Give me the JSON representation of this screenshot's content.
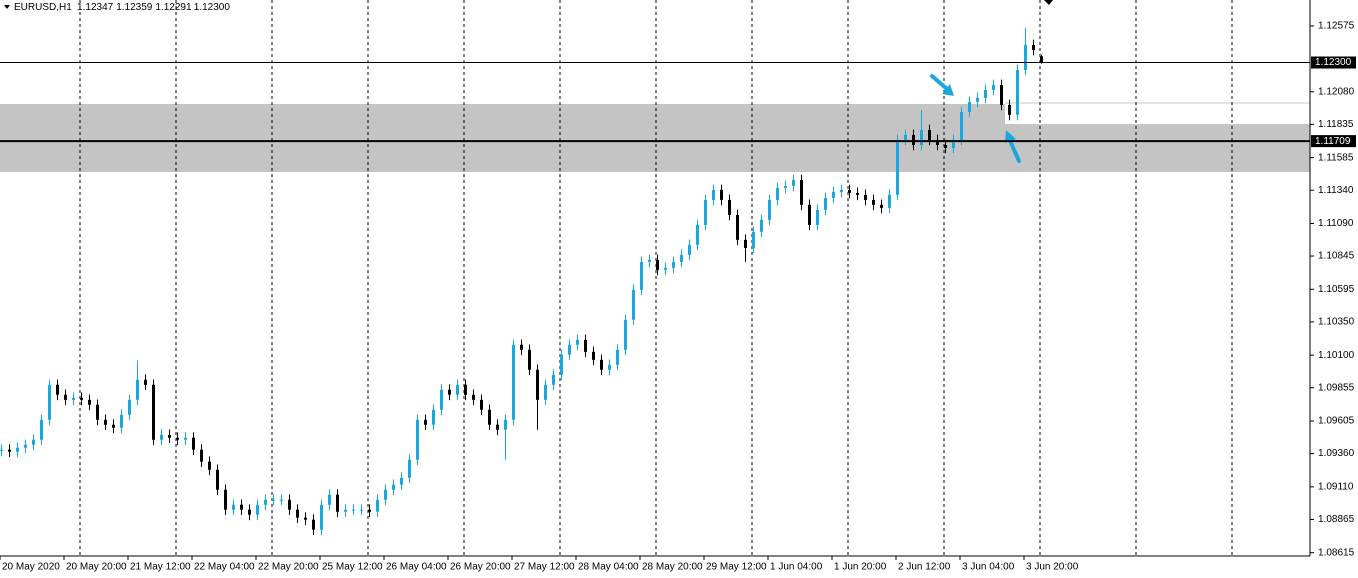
{
  "chart_data": {
    "type": "candlestick",
    "symbol": "EURUSD,H1",
    "quote": [
      {
        "value": 1.12347,
        "label": "1.12347"
      },
      {
        "value": 1.12359,
        "label": "1.12359"
      },
      {
        "value": 1.12291,
        "label": "1.12291"
      },
      {
        "value": 1.123,
        "label": "1.12300"
      }
    ],
    "up_color": "#1aa7df",
    "down_color": "#000000",
    "ylim": [
      1.0859,
      1.1277
    ],
    "yticks": [
      {
        "value": 1.12575,
        "label": "1.12575"
      },
      {
        "value": 1.1208,
        "label": "1.12080"
      },
      {
        "value": 1.11835,
        "label": "1.11835"
      },
      {
        "value": 1.11585,
        "label": "1.11585"
      },
      {
        "value": 1.1134,
        "label": "1.11340"
      },
      {
        "value": 1.1109,
        "label": "1.11090"
      },
      {
        "value": 1.10845,
        "label": "1.10845"
      },
      {
        "value": 1.10595,
        "label": "1.10595"
      },
      {
        "value": 1.1035,
        "label": "1.10350"
      },
      {
        "value": 1.101,
        "label": "1.10100"
      },
      {
        "value": 1.09855,
        "label": "1.09855"
      },
      {
        "value": 1.09605,
        "label": "1.09605"
      },
      {
        "value": 1.0936,
        "label": "1.09360"
      },
      {
        "value": 1.0911,
        "label": "1.09110"
      },
      {
        "value": 1.08865,
        "label": "1.08865"
      },
      {
        "value": 1.08615,
        "label": "1.08615"
      }
    ],
    "price_lines": [
      {
        "value": 1.123,
        "label": "1.12300"
      },
      {
        "value": 1.11709,
        "label": "1.11709"
      }
    ],
    "categories": [
      "20 May 2020",
      null,
      null,
      null,
      null,
      null,
      null,
      null,
      "20 May 20:00",
      null,
      null,
      null,
      null,
      null,
      null,
      null,
      "21 May 12:00",
      null,
      null,
      null,
      null,
      null,
      null,
      null,
      "22 May 04:00",
      null,
      null,
      null,
      null,
      null,
      null,
      null,
      "22 May 20:00",
      null,
      null,
      null,
      null,
      null,
      null,
      null,
      "25 May 12:00",
      null,
      null,
      null,
      null,
      null,
      null,
      null,
      "26 May 04:00",
      null,
      null,
      null,
      null,
      null,
      null,
      null,
      "26 May 20:00",
      null,
      null,
      null,
      null,
      null,
      null,
      null,
      "27 May 12:00",
      null,
      null,
      null,
      null,
      null,
      null,
      null,
      "28 May 04:00",
      null,
      null,
      null,
      null,
      null,
      null,
      null,
      "28 May 20:00",
      null,
      null,
      null,
      null,
      null,
      null,
      null,
      "29 May 12:00",
      null,
      null,
      null,
      null,
      null,
      null,
      null,
      "1 Jun 04:00",
      null,
      null,
      null,
      null,
      null,
      null,
      null,
      "1 Jun 20:00",
      null,
      null,
      null,
      null,
      null,
      null,
      null,
      "2 Jun 12:00",
      null,
      null,
      null,
      null,
      null,
      null,
      null,
      "3 Jun 04:00",
      null,
      null,
      null,
      null,
      null,
      null,
      null,
      "3 Jun 20:00",
      null,
      null
    ],
    "open": [
      1.0938,
      1.09389,
      1.09374,
      1.09404,
      1.09426,
      1.09464,
      1.09614,
      1.09877,
      1.09802,
      1.09764,
      1.09779,
      1.09764,
      1.09727,
      1.09614,
      1.09577,
      1.09554,
      1.09652,
      1.09764,
      1.09915,
      1.09877,
      1.09464,
      1.09501,
      1.09479,
      1.09464,
      1.09479,
      1.09389,
      1.09299,
      1.09238,
      1.09088,
      1.08938,
      1.08975,
      1.08938,
      1.089,
      1.08975,
      1.09013,
      1.09013,
      1.09013,
      1.08938,
      1.08878,
      1.08863,
      1.08788,
      1.08975,
      1.09051,
      1.08923,
      1.08938,
      1.08938,
      1.08938,
      1.08923,
      1.09013,
      1.09088,
      1.09126,
      1.09178,
      1.09314,
      1.09614,
      1.09577,
      1.09689,
      1.0984,
      1.09802,
      1.09877,
      1.09802,
      1.09764,
      1.09689,
      1.09577,
      1.09539,
      1.09614,
      1.10178,
      1.1014,
      1.0999,
      1.09764,
      1.09877,
      1.09952,
      1.10103,
      1.10178,
      1.10215,
      1.10125,
      1.10065,
      1.0999,
      1.10027,
      1.1014,
      1.10366,
      1.10591,
      1.10801,
      1.10816,
      1.10741,
      1.10756,
      1.10801,
      1.10854,
      1.10929,
      1.11079,
      1.11267,
      1.11342,
      1.11267,
      1.11154,
      1.10967,
      1.10906,
      1.11027,
      1.11117,
      1.11267,
      1.11357,
      1.11372,
      1.11417,
      1.1123,
      1.11079,
      1.11192,
      1.11282,
      1.11327,
      1.11342,
      1.1132,
      1.11305,
      1.11267,
      1.1123,
      1.11207,
      1.11305,
      1.11718,
      1.11756,
      1.1168,
      1.11793,
      1.11718,
      1.1168,
      1.11658,
      1.11718,
      1.11928,
      1.12004,
      1.12034,
      1.12094,
      1.12131,
      1.11981,
      1.11906,
      1.12244,
      1.12432,
      1.12347
    ],
    "high": [
      1.09429,
      1.09429,
      1.09444,
      1.09466,
      1.09504,
      1.09654,
      1.09917,
      1.09917,
      1.09842,
      1.09819,
      1.09819,
      1.09804,
      1.09767,
      1.09654,
      1.09617,
      1.09692,
      1.09804,
      1.1006,
      1.09955,
      1.09917,
      1.09541,
      1.09541,
      1.09519,
      1.09519,
      1.09519,
      1.09429,
      1.09339,
      1.09278,
      1.09128,
      1.09015,
      1.09015,
      1.08978,
      1.09015,
      1.09053,
      1.09053,
      1.09053,
      1.09053,
      1.08978,
      1.08918,
      1.08903,
      1.09015,
      1.09091,
      1.09091,
      1.08978,
      1.08978,
      1.08978,
      1.08978,
      1.09053,
      1.09128,
      1.09166,
      1.09218,
      1.09354,
      1.09654,
      1.09654,
      1.09729,
      1.0988,
      1.0988,
      1.09917,
      1.09917,
      1.09842,
      1.09804,
      1.09729,
      1.09617,
      1.09654,
      1.10218,
      1.10218,
      1.1018,
      1.1003,
      1.09917,
      1.09992,
      1.10143,
      1.10218,
      1.10255,
      1.10255,
      1.10165,
      1.10105,
      1.10067,
      1.1018,
      1.10406,
      1.10631,
      1.10841,
      1.10856,
      1.10856,
      1.10796,
      1.10841,
      1.10894,
      1.10969,
      1.11119,
      1.11307,
      1.11382,
      1.11382,
      1.11307,
      1.11194,
      1.11007,
      1.11067,
      1.11157,
      1.11307,
      1.11397,
      1.11412,
      1.11457,
      1.11457,
      1.1127,
      1.11232,
      1.11322,
      1.11367,
      1.11382,
      1.11382,
      1.1136,
      1.11345,
      1.11307,
      1.1127,
      1.11345,
      1.11758,
      1.11796,
      1.11796,
      1.11944,
      1.11833,
      1.11758,
      1.1172,
      1.11758,
      1.11968,
      1.12044,
      1.12074,
      1.12134,
      1.12171,
      1.12171,
      1.12021,
      1.12284,
      1.1256,
      1.12472,
      1.12359
    ],
    "low": [
      1.0934,
      1.09334,
      1.09334,
      1.09364,
      1.09386,
      1.09424,
      1.09574,
      1.09762,
      1.09724,
      1.09724,
      1.09724,
      1.09687,
      1.09574,
      1.09537,
      1.09514,
      1.09514,
      1.09612,
      1.09724,
      1.09837,
      1.09424,
      1.09424,
      1.09439,
      1.09424,
      1.09424,
      1.09349,
      1.09259,
      1.09198,
      1.09048,
      1.08898,
      1.08898,
      1.08898,
      1.0886,
      1.0886,
      1.08935,
      1.08973,
      1.08973,
      1.08898,
      1.08838,
      1.08823,
      1.08748,
      1.08748,
      1.08935,
      1.08883,
      1.08883,
      1.08898,
      1.08898,
      1.08883,
      1.08883,
      1.08973,
      1.09048,
      1.09086,
      1.09138,
      1.09274,
      1.09537,
      1.09537,
      1.09649,
      1.09762,
      1.09762,
      1.09762,
      1.09724,
      1.09649,
      1.09537,
      1.09499,
      1.09314,
      1.09574,
      1.101,
      1.0995,
      1.09539,
      1.09724,
      1.09837,
      1.09912,
      1.10063,
      1.10138,
      1.10085,
      1.10025,
      1.0995,
      1.0995,
      1.09987,
      1.101,
      1.10326,
      1.10551,
      1.10761,
      1.10701,
      1.10701,
      1.10716,
      1.10761,
      1.10814,
      1.10889,
      1.11039,
      1.11227,
      1.11227,
      1.11114,
      1.10927,
      1.10801,
      1.10866,
      1.10987,
      1.11077,
      1.11227,
      1.11317,
      1.11332,
      1.1119,
      1.11039,
      1.11039,
      1.11152,
      1.11242,
      1.11287,
      1.1128,
      1.11265,
      1.11227,
      1.1119,
      1.11167,
      1.11167,
      1.11265,
      1.11678,
      1.1164,
      1.1164,
      1.11678,
      1.1164,
      1.11618,
      1.11618,
      1.11678,
      1.11888,
      1.11964,
      1.11994,
      1.12054,
      1.11941,
      1.11866,
      1.11866,
      1.12204,
      1.12354,
      1.12291
    ],
    "close": [
      1.09389,
      1.09374,
      1.09404,
      1.09426,
      1.09464,
      1.09614,
      1.09877,
      1.09802,
      1.09764,
      1.09779,
      1.09764,
      1.09727,
      1.09614,
      1.09577,
      1.09554,
      1.09652,
      1.09764,
      1.09915,
      1.09877,
      1.09464,
      1.09501,
      1.09479,
      1.09464,
      1.09479,
      1.09389,
      1.09299,
      1.09238,
      1.09088,
      1.08938,
      1.08975,
      1.08938,
      1.089,
      1.08975,
      1.09013,
      1.09013,
      1.09013,
      1.08938,
      1.08878,
      1.08863,
      1.08788,
      1.08975,
      1.09051,
      1.08923,
      1.08938,
      1.08938,
      1.08938,
      1.08923,
      1.09013,
      1.09088,
      1.09126,
      1.09178,
      1.09314,
      1.09614,
      1.09577,
      1.09689,
      1.0984,
      1.09802,
      1.09877,
      1.09802,
      1.09764,
      1.09689,
      1.09577,
      1.09539,
      1.09614,
      1.10178,
      1.1014,
      1.0999,
      1.09764,
      1.09877,
      1.09952,
      1.10103,
      1.10178,
      1.10215,
      1.10125,
      1.10065,
      1.0999,
      1.10027,
      1.1014,
      1.10366,
      1.10591,
      1.10801,
      1.10816,
      1.10741,
      1.10756,
      1.10801,
      1.10854,
      1.10929,
      1.11079,
      1.11267,
      1.11342,
      1.11267,
      1.11154,
      1.10967,
      1.10906,
      1.11027,
      1.11117,
      1.11267,
      1.11357,
      1.11372,
      1.11417,
      1.1123,
      1.11079,
      1.11192,
      1.11282,
      1.11327,
      1.11342,
      1.1132,
      1.11305,
      1.11267,
      1.1123,
      1.11207,
      1.11305,
      1.11718,
      1.11756,
      1.1168,
      1.11793,
      1.11718,
      1.1168,
      1.11658,
      1.11718,
      1.11928,
      1.12004,
      1.12034,
      1.12094,
      1.12131,
      1.11981,
      1.11906,
      1.12244,
      1.12432,
      1.12394,
      1.123
    ]
  }
}
